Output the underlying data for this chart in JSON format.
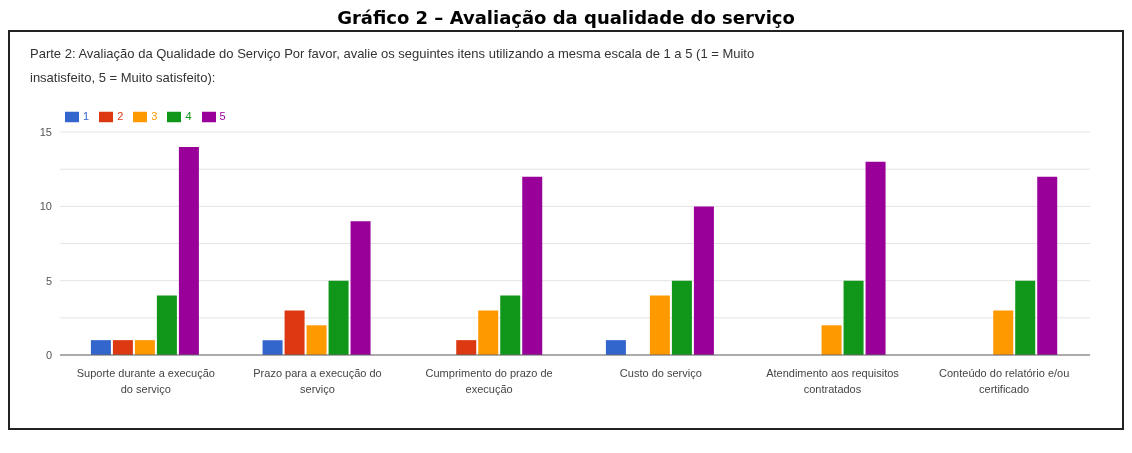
{
  "chart_data": {
    "type": "bar",
    "title": "Gráfico 2 – Avaliação da qualidade do serviço",
    "subtitle": "Parte 2: Avaliação da Qualidade do Serviço  Por favor, avalie os seguintes itens utilizando a mesma escala de 1 a 5 (1 = Muito insatisfeito, 5 = Muito satisfeito):",
    "categories": [
      "Suporte durante a execução do serviço",
      "Prazo para a execução do serviço",
      "Cumprimento do prazo de execução",
      "Custo do serviço",
      "Atendimento aos requisitos contratados",
      "Conteúdo do relatório e/ou certificado"
    ],
    "series": [
      {
        "name": "1",
        "color": "#3366cc",
        "values": [
          1,
          1,
          0,
          1,
          0,
          0
        ]
      },
      {
        "name": "2",
        "color": "#dc3912",
        "values": [
          1,
          3,
          1,
          0,
          0,
          0
        ]
      },
      {
        "name": "3",
        "color": "#ff9900",
        "values": [
          1,
          2,
          3,
          4,
          2,
          3
        ]
      },
      {
        "name": "4",
        "color": "#109618",
        "values": [
          4,
          5,
          4,
          5,
          5,
          5
        ]
      },
      {
        "name": "5",
        "color": "#990099",
        "values": [
          14,
          9,
          12,
          10,
          13,
          12
        ]
      }
    ],
    "ylim": [
      0,
      15
    ],
    "yticks": [
      0,
      {
        "value": 2.5,
        "label": null
      },
      5,
      {
        "value": 7.5,
        "label": null
      },
      10,
      {
        "value": 12.5,
        "label": null
      },
      15
    ],
    "grid": "y",
    "legend": "top left"
  }
}
